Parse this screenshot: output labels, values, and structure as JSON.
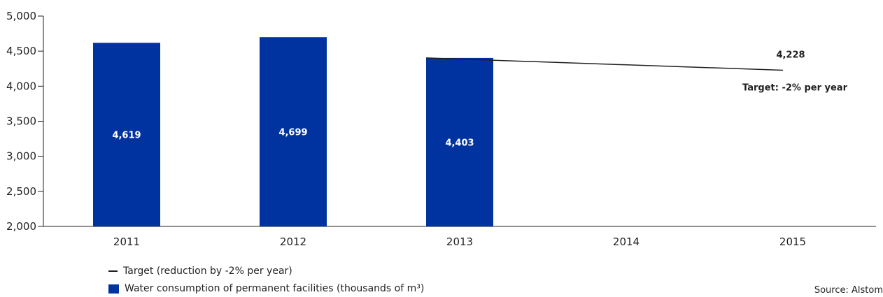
{
  "chart_data": {
    "type": "bar",
    "categories": [
      "2011",
      "2012",
      "2013",
      "2014",
      "2015"
    ],
    "series": [
      {
        "name": "Water consumption of permanent facilities (thousands of m³)",
        "values": [
          4619,
          4699,
          4403,
          null,
          null
        ],
        "labels": [
          "4,619",
          "4,699",
          "4,403",
          "",
          ""
        ],
        "color": "#0033a0"
      },
      {
        "name": "Target (reduction by -2% per year)",
        "type": "line",
        "points": [
          {
            "x": "2013",
            "y": 4403
          },
          {
            "x": "2015",
            "y": 4228
          }
        ],
        "end_label": "4,228",
        "color": "#231f20"
      }
    ],
    "annotation": "Target: -2% per year",
    "ylim": [
      2000,
      5000
    ],
    "yticks": [
      2000,
      2500,
      3000,
      3500,
      4000,
      4500,
      5000
    ],
    "ytick_labels": [
      "2,000",
      "2,500",
      "3,000",
      "3,500",
      "4,000",
      "4,500",
      "5,000"
    ],
    "grid": false,
    "legend_position": "bottom-left"
  },
  "legend": {
    "target_label": "Target (reduction by -2% per year)",
    "consumption_label": "Water consumption of permanent facilities (thousands of m³)"
  },
  "source": "Source: Alstom"
}
